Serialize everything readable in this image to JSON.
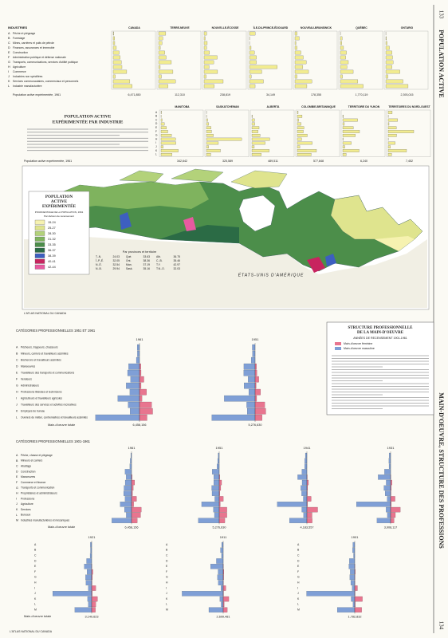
{
  "page": {
    "left_number": "133",
    "left_title": "POPULATION ACTIVE",
    "right_number": "134",
    "right_title": "MAIN-D'OEUVRE, STRUCTURE DES PROFESSIONS",
    "credit": "L'ATLAS NATIONAL DU CANADA"
  },
  "industry": {
    "header": "INDUSTRIES",
    "letters": [
      "A",
      "B",
      "C",
      "D",
      "E",
      "F",
      "G",
      "H",
      "I",
      "J",
      "K",
      "L"
    ],
    "labels": [
      "Pêche et piégeage",
      "Forestage",
      "Mines, carrières et puits de pétrole",
      "Finances, assurances et immeuble",
      "Construction",
      "Administration publique et défense nationale",
      "Transports, communications, services d'utilité publique",
      "Agriculture",
      "Commerce",
      "Industries non spécifiées",
      "Services communautaires, commerciaux et personnels",
      "Industrie manufacturière"
    ],
    "legend_title": [
      "POPULATION ACTIVE",
      "EXPÉRIMENTÉE PAR INDUSTRIE"
    ],
    "population_label": "Population active expérimentée, 1961",
    "bar_color": "#f2ec8f",
    "regions": [
      {
        "name": "CANADA",
        "population": "6,471,850",
        "values": [
          0.6,
          1.7,
          1.8,
          3.6,
          6.8,
          7.9,
          9.3,
          10.0,
          15.4,
          2.5,
          19.0,
          21.7
        ]
      },
      {
        "name": "TERRE-NEUVE",
        "population": "112,310",
        "values": [
          8.1,
          4.8,
          3.9,
          1.9,
          7.0,
          8.6,
          14.5,
          1.8,
          16.3,
          3.2,
          19.2,
          10.7
        ]
      },
      {
        "name": "NOUVELLE-ÉCOSSE",
        "population": "238,819",
        "values": [
          2.9,
          1.3,
          3.6,
          2.9,
          6.2,
          15.0,
          11.0,
          5.8,
          15.4,
          2.4,
          21.8,
          11.7
        ]
      },
      {
        "name": "ÎLE-DU-PRINCE-ÉDOUARD",
        "population": "34,149",
        "values": [
          6.5,
          0.3,
          0.1,
          1.8,
          5.6,
          7.9,
          7.8,
          31.7,
          14.0,
          2.0,
          15.9,
          6.4
        ]
      },
      {
        "name": "NOUVEAU-BRUNSWICK",
        "population": "178,355",
        "values": [
          2.4,
          4.9,
          1.2,
          2.4,
          6.8,
          9.5,
          13.0,
          9.0,
          15.5,
          2.4,
          19.3,
          13.6
        ]
      },
      {
        "name": "QUÉBEC",
        "population": "1,770,119",
        "values": [
          0.1,
          2.0,
          1.7,
          3.6,
          6.9,
          6.1,
          9.1,
          7.5,
          14.6,
          2.5,
          19.9,
          26.0
        ]
      },
      {
        "name": "ONTARIO",
        "population": "2,393,015",
        "values": [
          0.1,
          0.7,
          1.4,
          4.1,
          7.0,
          7.7,
          8.4,
          7.1,
          16.1,
          2.4,
          19.6,
          25.4
        ]
      },
      {
        "name": "MANITOBA",
        "population": "342,642",
        "values": [
          0.5,
          0.3,
          1.3,
          3.8,
          6.2,
          7.7,
          11.9,
          16.7,
          16.9,
          2.6,
          19.6,
          12.5
        ]
      },
      {
        "name": "SASKATCHEWAN",
        "population": "325,589",
        "values": [
          0.1,
          0.3,
          1.4,
          2.5,
          5.1,
          5.8,
          7.8,
          40.1,
          13.6,
          2.5,
          15.9,
          4.9
        ]
      },
      {
        "name": "ALBERTA",
        "population": "489,511",
        "values": [
          0.0,
          0.5,
          3.1,
          3.3,
          8.2,
          7.0,
          9.3,
          20.4,
          15.1,
          2.7,
          19.7,
          10.7
        ]
      },
      {
        "name": "COLOMBIE-BRITANNIQUE",
        "population": "577,848",
        "values": [
          0.9,
          5.4,
          1.6,
          4.2,
          7.5,
          6.8,
          11.3,
          4.9,
          17.0,
          2.8,
          21.8,
          15.8
        ]
      },
      {
        "name": "TERRITOIRE DU YUKON",
        "population": "6,240",
        "values": [
          0.0,
          0.6,
          17.1,
          1.8,
          12.0,
          19.1,
          14.4,
          0.5,
          9.7,
          2.3,
          18.6,
          3.9
        ]
      },
      {
        "name": "TERRITOIRES DU NORD-OUEST",
        "population": "7,452",
        "values": [
          4.5,
          0.3,
          10.8,
          0.9,
          9.2,
          29.1,
          9.5,
          0.3,
          8.0,
          2.6,
          20.9,
          3.9
        ]
      }
    ]
  },
  "map": {
    "title": [
      "POPULATION",
      "ACTIVE",
      "EXPÉRIMENTÉE"
    ],
    "subtitle": "POURCENTAGE DE LA POPULATION, 1961",
    "unit": "Par division de recensement",
    "classes": [
      {
        "label": "15-24",
        "color": "#f6f2b0"
      },
      {
        "label": "25-27",
        "color": "#dfe48e"
      },
      {
        "label": "28-30",
        "color": "#b3d27a"
      },
      {
        "label": "31-32",
        "color": "#7fb35e"
      },
      {
        "label": "33-35",
        "color": "#4c8e4a"
      },
      {
        "label": "36-37",
        "color": "#2b6b45"
      },
      {
        "label": "38-39",
        "color": "#3d5fc0"
      },
      {
        "label": "40-41",
        "color": "#c8245f"
      },
      {
        "label": "42-44",
        "color": "#e85aa0"
      }
    ],
    "province_header": "Par provinces et territoire",
    "provinces": [
      {
        "abbr": "T.-N.",
        "value": 24.03
      },
      {
        "abbr": "Qué.",
        "value": 33.63
      },
      {
        "abbr": "Alb.",
        "value": 36.75
      },
      {
        "abbr": "Î.-P.-É.",
        "value": 32.05
      },
      {
        "abbr": "Ont.",
        "value": 38.36
      },
      {
        "abbr": "C.-B.",
        "value": 35.46
      },
      {
        "abbr": "N.-É.",
        "value": 32.54
      },
      {
        "abbr": "Man.",
        "value": 37.19
      },
      {
        "abbr": "T.Y.",
        "value": 42.97
      },
      {
        "abbr": "N.-B.",
        "value": 29.94
      },
      {
        "abbr": "Sask.",
        "value": 35.16
      },
      {
        "abbr": "T.N.-O.",
        "value": 32.03
      }
    ],
    "country": "ÉTATS-UNIS D'AMÉRIQUE"
  },
  "occupations": {
    "box_title": [
      "STRUCTURE PROFESSIONNELLE",
      "DE LA MAIN-D'OEUVRE"
    ],
    "box_subtitle": "ANNÉES DE RECENSEMENT 1901-1961",
    "female": {
      "label": "Main-d'oeuvre féminine",
      "color": "#e8758f"
    },
    "male": {
      "label": "Main-d'oeuvre masculine",
      "color": "#7f9fd6"
    },
    "total_label": "Main-d'oeuvre totale",
    "groups": [
      {
        "title": "CATÉGORIES PROFESSIONNELLES 1951 ET 1961",
        "letters": [
          "A",
          "B",
          "C",
          "D",
          "E",
          "F",
          "G",
          "H",
          "I",
          "J",
          "K",
          "L"
        ],
        "labels": [
          "Pêcheurs, trappeurs, chasseurs",
          "Mineurs, carriers et travailleurs assimilés",
          "Bûcherons et travailleurs assimilés",
          "Manoeuvres",
          "Travailleurs des transports et communications",
          "Vendeurs",
          "Administrateurs",
          "Professions libérales et techniciens",
          "Agriculteurs et travailleurs agricoles",
          "Travailleurs des services et activités récréatives",
          "Employés de bureau",
          "Ouvriers de métier, contremaîtres et travailleurs assimilés"
        ],
        "pyramids": [
          {
            "year": "1961",
            "total": "6,458,156",
            "male": [
              1.3,
              1.2,
              1.8,
              6.2,
              6.8,
              5.1,
              7.6,
              5.5,
              12.4,
              6.5,
              5.4,
              25.1
            ],
            "female": [
              0.0,
              0.0,
              0.0,
              0.8,
              0.9,
              2.5,
              0.9,
              4.0,
              1.4,
              6.9,
              7.5,
              4.3
            ]
          },
          {
            "year": "1951",
            "total": "5,276,630",
            "male": [
              1.6,
              1.5,
              2.2,
              6.4,
              6.5,
              4.0,
              6.3,
              3.6,
              17.6,
              4.8,
              4.5,
              24.7
            ],
            "female": [
              0.0,
              0.0,
              0.0,
              0.8,
              1.0,
              2.1,
              0.6,
              3.1,
              0.9,
              5.5,
              6.1,
              4.0
            ]
          }
        ]
      },
      {
        "title": "CATÉGORIES PROFESSIONNELLES 1901-1961",
        "letters": [
          "A",
          "B",
          "C",
          "D",
          "E",
          "F",
          "G",
          "H",
          "I",
          "J",
          "K",
          "L",
          "M"
        ],
        "labels": [
          "Pêche, chasse et piégeage",
          "Mineurs et carriers",
          "Abattage",
          "Construction",
          "Manoeuvres",
          "Commerce et finance",
          "Transports et communication",
          "Propriétaires et administrateurs",
          "Professions",
          "Agriculture",
          "Services",
          "Bureaux",
          "Industries manufacturières et mécaniques"
        ],
        "pyramids": [
          {
            "year": "1961",
            "total": "6,458,156",
            "male": [
              0.6,
              1.1,
              1.4,
              5.4,
              4.5,
              5.3,
              6.3,
              6.6,
              5.4,
              9.5,
              5.9,
              4.4,
              16.5
            ],
            "female": [
              0.0,
              0.0,
              0.0,
              0.0,
              0.5,
              2.6,
              1.4,
              0.8,
              4.2,
              1.8,
              8.2,
              7.6,
              4.8
            ]
          },
          {
            "year": "1951",
            "total": "5,276,630",
            "male": [
              0.9,
              1.3,
              1.9,
              5.9,
              4.6,
              4.6,
              6.3,
              6.0,
              3.7,
              14.7,
              4.9,
              4.0,
              17.5
            ],
            "female": [
              0.0,
              0.0,
              0.0,
              0.0,
              0.5,
              2.0,
              1.3,
              0.5,
              3.4,
              0.9,
              6.4,
              6.4,
              4.7
            ]
          },
          {
            "year": "1941",
            "total": "4,183,557",
            "male": [
              1.3,
              1.8,
              1.9,
              4.2,
              7.7,
              4.0,
              5.1,
              4.4,
              3.0,
              24.8,
              4.3,
              2.8,
              14.6
            ],
            "female": [
              0.0,
              0.0,
              0.0,
              0.0,
              0.3,
              1.3,
              0.6,
              0.4,
              3.6,
              0.5,
              9.0,
              4.3,
              4.4
            ]
          },
          {
            "year": "1931",
            "total": "3,908,117",
            "male": [
              1.2,
              1.4,
              1.3,
              5.1,
              10.4,
              3.7,
              5.6,
              4.6,
              2.9,
              28.6,
              3.8,
              2.7,
              11.4
            ],
            "female": [
              0.0,
              0.0,
              0.0,
              0.0,
              0.1,
              1.2,
              0.6,
              0.3,
              3.7,
              0.6,
              8.1,
              4.0,
              2.9
            ]
          },
          {
            "year": "1921",
            "total": "3,140,623",
            "male": [
              1.1,
              1.0,
              1.3,
              4.3,
              6.2,
              3.9,
              5.1,
              4.8,
              2.8,
              32.6,
              3.4,
              2.8,
              14.1
            ],
            "female": [
              0.0,
              0.0,
              0.0,
              0.0,
              0.1,
              1.0,
              0.6,
              0.3,
              3.4,
              0.5,
              4.9,
              3.4,
              3.1
            ]
          },
          {
            "year": "1911",
            "total": "2,699,481",
            "male": [
              1.3,
              2.3,
              1.4,
              5.7,
              10.6,
              4.3,
              4.8,
              4.1,
              1.9,
              34.4,
              2.8,
              1.7,
              12.0
            ],
            "female": [
              0.0,
              0.0,
              0.0,
              0.0,
              0.1,
              0.6,
              0.4,
              0.2,
              2.2,
              0.3,
              4.7,
              0.8,
              3.4
            ]
          },
          {
            "year": "1901",
            "total": "1,782,832",
            "male": [
              1.6,
              1.8,
              1.0,
              4.5,
              4.9,
              3.8,
              4.1,
              3.3,
              2.1,
              40.3,
              3.0,
              1.4,
              14.6
            ],
            "female": [
              0.0,
              0.0,
              0.0,
              0.0,
              0.1,
              0.4,
              0.2,
              0.1,
              2.3,
              0.3,
              6.4,
              0.4,
              5.8
            ]
          }
        ]
      }
    ]
  }
}
